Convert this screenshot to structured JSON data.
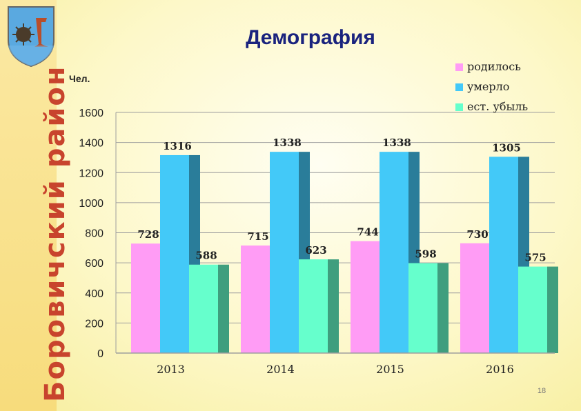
{
  "page": {
    "title": "Демография",
    "side_title": "Боровичский район",
    "slide_number": "18"
  },
  "colors": {
    "background": "#fdf8c9",
    "side_text": "#c8442d",
    "title": "#1a237e"
  },
  "chart_data": {
    "type": "bar",
    "title": "",
    "xlabel": "",
    "ylabel": "Чел.",
    "categories": [
      "2013",
      "2014",
      "2015",
      "2016"
    ],
    "series": [
      {
        "name": "родилось",
        "color": "#ff9cf5",
        "values": [
          728,
          715,
          744,
          730
        ]
      },
      {
        "name": "умерло",
        "color": "#43c9f8",
        "values": [
          1316,
          1338,
          1338,
          1305
        ]
      },
      {
        "name": "ест. убыль",
        "color": "#66ffcc",
        "values": [
          588,
          623,
          598,
          575
        ]
      }
    ],
    "ylim": [
      0,
      1600
    ],
    "yticks": [
      0,
      200,
      400,
      600,
      800,
      1000,
      1200,
      1400,
      1600
    ],
    "grid": true,
    "legend_position": "top-right",
    "bar_style": "3d"
  }
}
